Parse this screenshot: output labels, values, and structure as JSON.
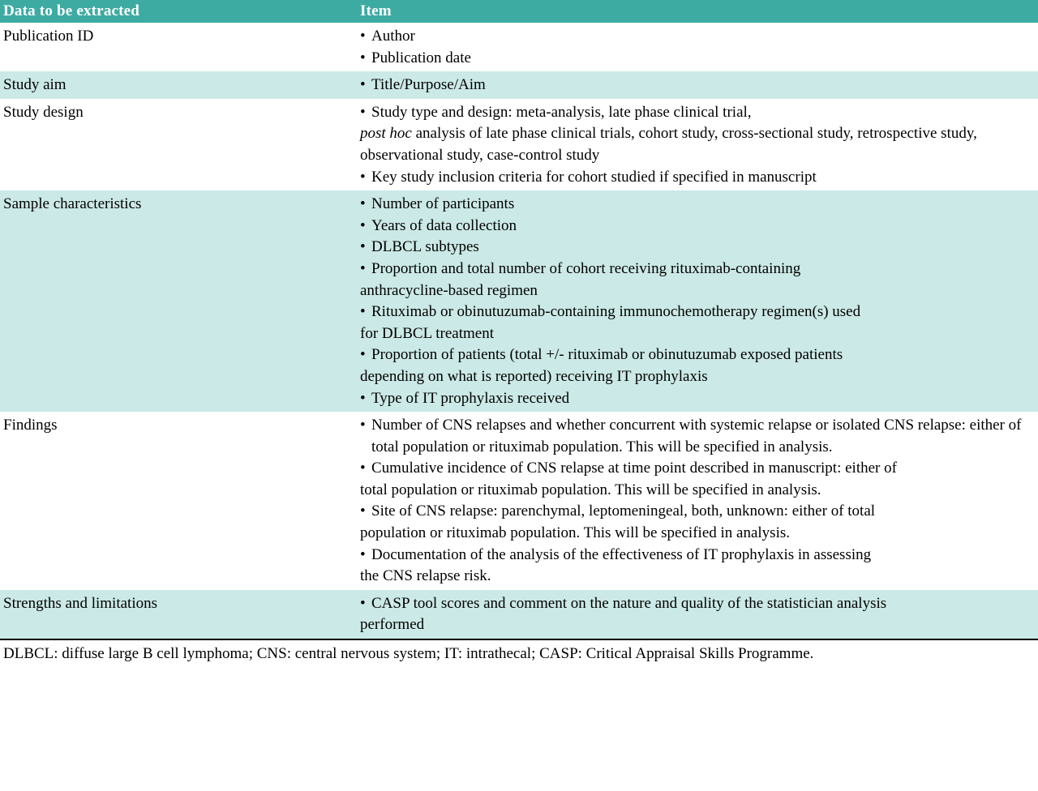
{
  "header": {
    "col1": "Data to be extracted",
    "col2": "Item"
  },
  "rows": [
    {
      "bg": "white",
      "label": "Publication ID",
      "items": [
        {
          "type": "bullet",
          "text": "Author"
        },
        {
          "type": "bullet",
          "text": "Publication date"
        }
      ]
    },
    {
      "bg": "tint",
      "label": "Study aim",
      "items": [
        {
          "type": "bullet",
          "text": "Title/Purpose/Aim"
        }
      ]
    },
    {
      "bg": "white",
      "label": "Study design",
      "items": [
        {
          "type": "bullet",
          "text": "Study type and design: meta-analysis, late phase clinical trial,"
        },
        {
          "type": "cont",
          "italic_prefix": "post hoc",
          "text": " analysis of late phase clinical trials, cohort study, cross-sectional study, retrospective study, observational study, case-control study"
        },
        {
          "type": "bullet",
          "text": "Key study inclusion criteria for cohort studied if specified in manuscript"
        }
      ]
    },
    {
      "bg": "tint",
      "label": "Sample characteristics",
      "items": [
        {
          "type": "bullet",
          "text": "Number of participants"
        },
        {
          "type": "bullet",
          "text": "Years of data collection"
        },
        {
          "type": "bullet",
          "text": "DLBCL subtypes"
        },
        {
          "type": "bullet",
          "text": "Proportion and total number of cohort receiving rituximab-containing"
        },
        {
          "type": "cont",
          "text": "anthracycline-based regimen"
        },
        {
          "type": "bullet",
          "text": "Rituximab or obinutuzumab-containing immunochemotherapy regimen(s) used"
        },
        {
          "type": "cont",
          "text": "for DLBCL treatment"
        },
        {
          "type": "bullet",
          "text": "Proportion of patients (total +/- rituximab or obinutuzumab exposed patients"
        },
        {
          "type": "cont",
          "text": "depending on what is reported) receiving IT prophylaxis"
        },
        {
          "type": "bullet",
          "text": "Type of IT prophylaxis received"
        }
      ]
    },
    {
      "bg": "white",
      "label": "Findings",
      "items": [
        {
          "type": "bullet",
          "text": "Number of CNS relapses and whether concurrent with systemic relapse or isolated CNS relapse: either of total population or rituximab population. This will be specified in analysis."
        },
        {
          "type": "bullet",
          "text": "Cumulative incidence of CNS relapse at time point described in manuscript: either of"
        },
        {
          "type": "cont",
          "text": "total population or rituximab population. This will be specified in analysis."
        },
        {
          "type": "bullet",
          "text": "Site of CNS relapse: parenchymal, leptomeningeal, both, unknown: either of total"
        },
        {
          "type": "cont",
          "text": "population or rituximab population. This will be specified in analysis."
        },
        {
          "type": "bullet",
          "text": "Documentation of the analysis of the effectiveness of IT prophylaxis in assessing"
        },
        {
          "type": "cont",
          "text": " the CNS relapse risk."
        }
      ]
    },
    {
      "bg": "tint",
      "label": "Strengths and limitations",
      "items": [
        {
          "type": "bullet",
          "text": "CASP tool scores and comment on the nature and quality of the statistician analysis"
        },
        {
          "type": "cont",
          "text": "performed"
        }
      ]
    }
  ],
  "footnote": "DLBCL: diffuse large B cell lymphoma; CNS: central nervous system; IT: intrathecal; CASP: Critical Appraisal Skills Programme."
}
